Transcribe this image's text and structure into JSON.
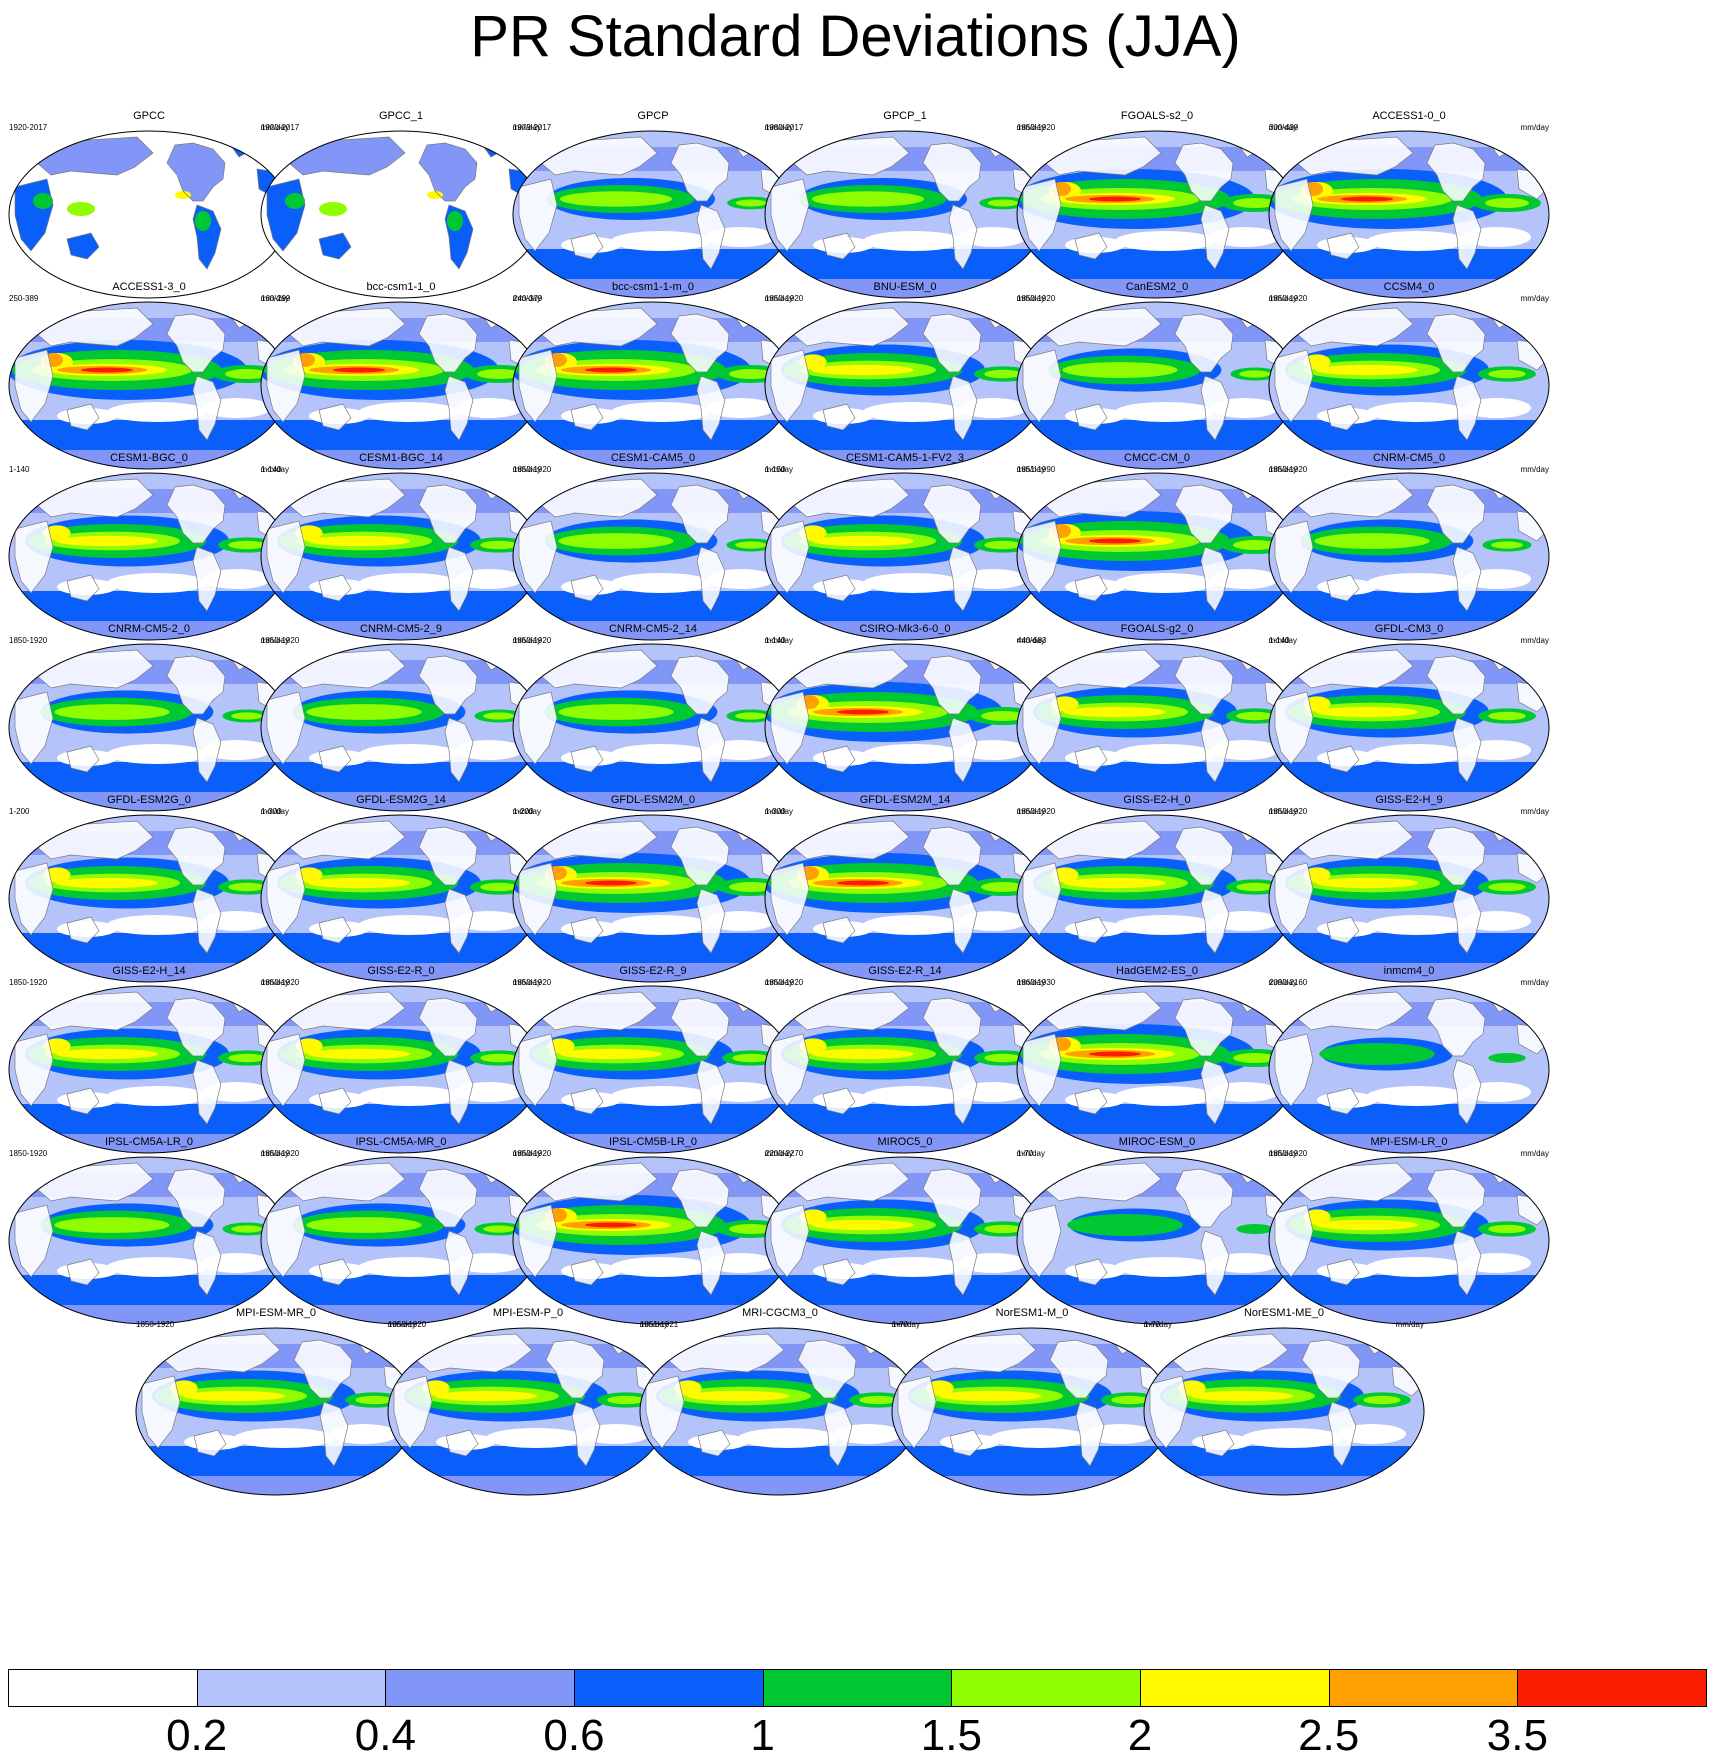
{
  "title": "PR Standard Deviations (JJA)",
  "units": "mm/day",
  "colorbar": {
    "levels": [
      "0.2",
      "0.4",
      "0.6",
      "1",
      "1.5",
      "2",
      "2.5",
      "3.5"
    ],
    "colors": [
      "#ffffff",
      "#b4c3fa",
      "#8296f8",
      "#0a5ffa",
      "#00c832",
      "#8ffc00",
      "#fffa00",
      "#ffa000",
      "#fa1e00"
    ]
  },
  "panels": [
    {
      "name": "GPCC",
      "years": "1920-2017",
      "style": "land"
    },
    {
      "name": "GPCC_1",
      "years": "1920-2017",
      "style": "land"
    },
    {
      "name": "GPCP",
      "years": "1979-2017",
      "style": "obs"
    },
    {
      "name": "GPCP_1",
      "years": "1980-2017",
      "style": "obs"
    },
    {
      "name": "FGOALS-s2_0",
      "years": "1850-1920",
      "style": "hot"
    },
    {
      "name": "ACCESS1-0_0",
      "years": "300-439",
      "style": "hot"
    },
    {
      "name": "ACCESS1-3_0",
      "years": "250-389",
      "style": "hot"
    },
    {
      "name": "bcc-csm1-1_0",
      "years": "160-299",
      "style": "hot"
    },
    {
      "name": "bcc-csm1-1-m_0",
      "years": "240-379",
      "style": "hot"
    },
    {
      "name": "BNU-ESM_0",
      "years": "1850-1920",
      "style": "warm"
    },
    {
      "name": "CanESM2_0",
      "years": "1850-1920",
      "style": "med"
    },
    {
      "name": "CCSM4_0",
      "years": "1850-1920",
      "style": "warm"
    },
    {
      "name": "CESM1-BGC_0",
      "years": "1-140",
      "style": "warm"
    },
    {
      "name": "CESM1-BGC_14",
      "years": "1-140",
      "style": "warm"
    },
    {
      "name": "CESM1-CAM5_0",
      "years": "1850-1920",
      "style": "med"
    },
    {
      "name": "CESM1-CAM5-1-FV2_3",
      "years": "1-150",
      "style": "warm"
    },
    {
      "name": "CMCC-CM_0",
      "years": "1851-1990",
      "style": "hot"
    },
    {
      "name": "CNRM-CM5_0",
      "years": "1850-1920",
      "style": "med"
    },
    {
      "name": "CNRM-CM5-2_0",
      "years": "1850-1920",
      "style": "med"
    },
    {
      "name": "CNRM-CM5-2_9",
      "years": "1850-1920",
      "style": "med"
    },
    {
      "name": "CNRM-CM5-2_14",
      "years": "1850-1920",
      "style": "med"
    },
    {
      "name": "CSIRO-Mk3-6-0_0",
      "years": "1-140",
      "style": "hot"
    },
    {
      "name": "FGOALS-g2_0",
      "years": "440-683",
      "style": "warm"
    },
    {
      "name": "GFDL-CM3_0",
      "years": "1-140",
      "style": "warm"
    },
    {
      "name": "GFDL-ESM2G_0",
      "years": "1-200",
      "style": "warm"
    },
    {
      "name": "GFDL-ESM2G_14",
      "years": "1-300",
      "style": "warm"
    },
    {
      "name": "GFDL-ESM2M_0",
      "years": "1-200",
      "style": "hot"
    },
    {
      "name": "GFDL-ESM2M_14",
      "years": "1-300",
      "style": "hot"
    },
    {
      "name": "GISS-E2-H_0",
      "years": "1850-1920",
      "style": "warm"
    },
    {
      "name": "GISS-E2-H_9",
      "years": "1850-1920",
      "style": "warm"
    },
    {
      "name": "GISS-E2-H_14",
      "years": "1850-1920",
      "style": "warm"
    },
    {
      "name": "GISS-E2-R_0",
      "years": "1850-1920",
      "style": "warm"
    },
    {
      "name": "GISS-E2-R_9",
      "years": "1850-1920",
      "style": "warm"
    },
    {
      "name": "GISS-E2-R_14",
      "years": "1850-1920",
      "style": "warm"
    },
    {
      "name": "HadGEM2-ES_0",
      "years": "1860-1930",
      "style": "hot"
    },
    {
      "name": "inmcm4_0",
      "years": "2090-2160",
      "style": "cool"
    },
    {
      "name": "IPSL-CM5A-LR_0",
      "years": "1850-1920",
      "style": "med"
    },
    {
      "name": "IPSL-CM5A-MR_0",
      "years": "1850-1920",
      "style": "med"
    },
    {
      "name": "IPSL-CM5B-LR_0",
      "years": "1850-1920",
      "style": "hot"
    },
    {
      "name": "MIROC5_0",
      "years": "2200-2270",
      "style": "warm"
    },
    {
      "name": "MIROC-ESM_0",
      "years": "1-70",
      "style": "cool"
    },
    {
      "name": "MPI-ESM-LR_0",
      "years": "1850-1920",
      "style": "warm"
    },
    {
      "name": "MPI-ESM-MR_0",
      "years": "1850-1920",
      "style": "warm"
    },
    {
      "name": "MPI-ESM-P_0",
      "years": "1850-1920",
      "style": "warm"
    },
    {
      "name": "MRI-CGCM3_0",
      "years": "1851-1921",
      "style": "warm"
    },
    {
      "name": "NorESM1-M_0",
      "years": "1-70",
      "style": "warm"
    },
    {
      "name": "NorESM1-ME_0",
      "years": "1-70",
      "style": "warm"
    }
  ]
}
